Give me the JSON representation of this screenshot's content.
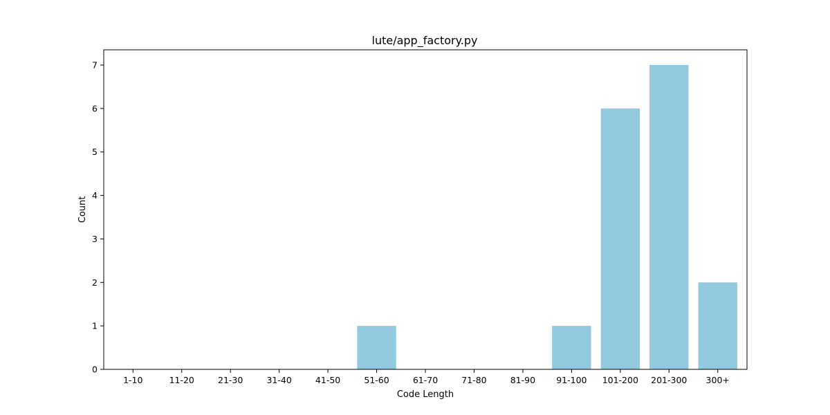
{
  "chart_data": {
    "type": "bar",
    "title": "lute/app_factory.py",
    "xlabel": "Code Length",
    "ylabel": "Count",
    "categories": [
      "1-10",
      "11-20",
      "21-30",
      "31-40",
      "41-50",
      "51-60",
      "61-70",
      "71-80",
      "81-90",
      "91-100",
      "101-200",
      "201-300",
      "300+"
    ],
    "values": [
      0,
      0,
      0,
      0,
      0,
      1,
      0,
      0,
      0,
      1,
      6,
      7,
      2
    ],
    "ylim": [
      0,
      7.35
    ],
    "yticks": [
      0,
      1,
      2,
      3,
      4,
      5,
      6,
      7
    ],
    "bar_color": "#92c9df",
    "grid": false,
    "legend": "none"
  }
}
